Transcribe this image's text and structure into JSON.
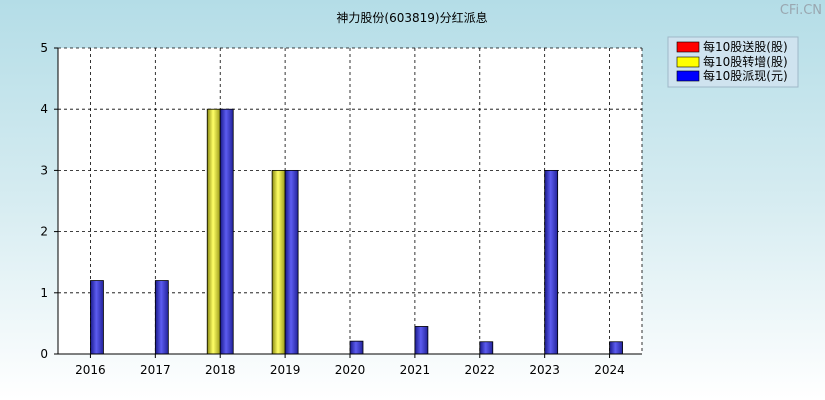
{
  "watermark": "CFi.CN",
  "colors": {
    "song": "#ff0000",
    "zhuan": "#ffff00",
    "pai": "#0000ff"
  },
  "chart_data": {
    "type": "bar",
    "title": "神力股份(603819)分红派息",
    "xlabel": "",
    "ylabel": "",
    "categories": [
      "2016",
      "2017",
      "2018",
      "2019",
      "2020",
      "2021",
      "2022",
      "2023",
      "2024"
    ],
    "ylim": [
      0,
      5
    ],
    "yticks": [
      "0",
      "1",
      "2",
      "3",
      "4",
      "5"
    ],
    "grid": true,
    "legend_position": "top-right",
    "series": [
      {
        "name": "每10股送股(股)",
        "color": "#ff0000",
        "values": [
          0,
          0,
          0,
          0,
          0,
          0,
          0,
          0,
          0
        ]
      },
      {
        "name": "每10股转增(股)",
        "color": "#ffff00",
        "values": [
          0,
          0,
          4,
          3,
          0,
          0,
          0,
          0,
          0
        ]
      },
      {
        "name": "每10股派现(元)",
        "color": "#0000ff",
        "values": [
          1.2,
          1.2,
          4,
          3,
          0.21,
          0.45,
          0.2,
          3,
          0.2
        ]
      }
    ]
  }
}
